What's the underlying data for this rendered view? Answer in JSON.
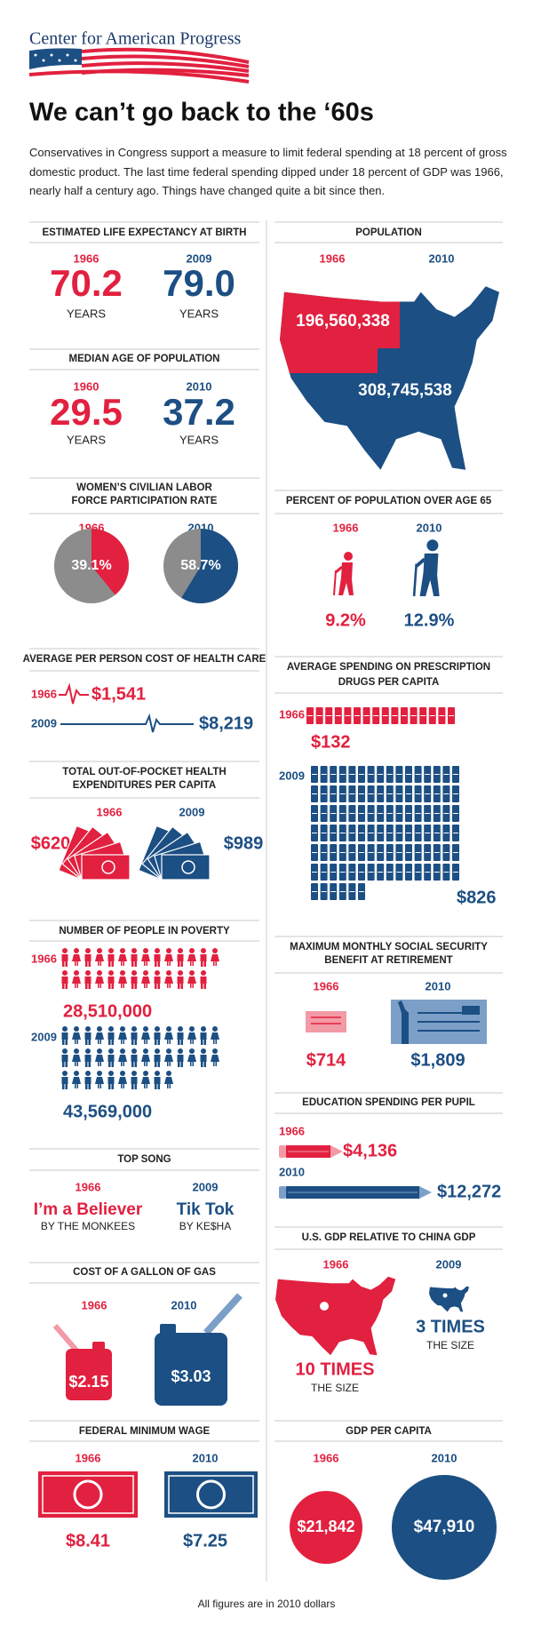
{
  "header": {
    "logo": "Center for American Progress",
    "title": "We can’t go back to the ‘60s",
    "intro": "Conservatives in Congress support a measure to limit federal spending at 18 percent of gross domestic product. The last time federal spending dipped under 18 percent of GDP was 1966, nearly half a century ago. Things have changed quite a bit since then."
  },
  "life_expectancy": {
    "title": "ESTIMATED LIFE EXPECTANCY AT BIRTH",
    "items": [
      {
        "year": "1966",
        "value": "70.2",
        "unit": "YEARS"
      },
      {
        "year": "2009",
        "value": "79.0",
        "unit": "YEARS"
      }
    ]
  },
  "median_age": {
    "title": "MEDIAN AGE OF POPULATION",
    "items": [
      {
        "year": "1960",
        "value": "29.5",
        "unit": "YEARS"
      },
      {
        "year": "2010",
        "value": "37.2",
        "unit": "YEARS"
      }
    ]
  },
  "labor_participation": {
    "title": [
      "WOMEN’S CIVILIAN LABOR",
      "FORCE PARTICIPATION RATE"
    ],
    "items": [
      {
        "year": "1966",
        "value": {
          "value": 39.1,
          "label": "39.1%"
        }
      },
      {
        "year": "2010",
        "value": {
          "value": 58.7,
          "label": "58.7%"
        }
      }
    ]
  },
  "health_care_cost": {
    "title": "AVERAGE PER PERSON COST OF HEALTH CARE",
    "items": [
      {
        "year": "1966",
        "value": "$1,541"
      },
      {
        "year": "2009",
        "value": "$8,219"
      }
    ]
  },
  "out_of_pocket": {
    "title": [
      "TOTAL OUT-OF-POCKET HEALTH",
      "EXPENDITURES PER CAPITA"
    ],
    "items": [
      {
        "year": "1966",
        "value": "$620"
      },
      {
        "year": "2009",
        "value": "$989"
      }
    ]
  },
  "poverty": {
    "title": "NUMBER OF PEOPLE IN POVERTY",
    "items": [
      {
        "year": "1966",
        "value": "28,510,000"
      },
      {
        "year": "2009",
        "value": "43,569,000"
      }
    ]
  },
  "top_song": {
    "title": "TOP SONG",
    "items": [
      {
        "year": "1966",
        "song": "I’m a Believer",
        "artist": "BY THE MONKEES"
      },
      {
        "year": "2009",
        "song": "Tik Tok",
        "artist": "BY KE$HA"
      }
    ]
  },
  "gas": {
    "title": "COST OF A GALLON OF GAS",
    "items": [
      {
        "year": "1966",
        "value": "$2.15"
      },
      {
        "year": "2010",
        "value": "$3.03"
      }
    ]
  },
  "minimum_wage": {
    "title": "FEDERAL MINIMUM WAGE",
    "items": [
      {
        "year": "1966",
        "value": "$8.41"
      },
      {
        "year": "2010",
        "value": "$7.25"
      }
    ]
  },
  "population": {
    "title": "POPULATION",
    "items": [
      {
        "year": "1966",
        "value": "196,560,338"
      },
      {
        "year": "2010",
        "value": "308,745,538"
      }
    ]
  },
  "over_65": {
    "title": "PERCENT OF POPULATION OVER AGE 65",
    "items": [
      {
        "year": "1966",
        "value": "9.2%"
      },
      {
        "year": "2010",
        "value": "12.9%"
      }
    ]
  },
  "prescription": {
    "title": [
      "AVERAGE SPENDING ON PRESCRIPTION",
      "DRUGS PER CAPITA"
    ],
    "items": [
      {
        "year": "1966",
        "value": "$132"
      },
      {
        "year": "2009",
        "value": "$826"
      }
    ]
  },
  "social_security": {
    "title": [
      "MAXIMUM MONTHLY SOCIAL SECURITY",
      "BENEFIT AT RETIREMENT"
    ],
    "items": [
      {
        "year": "1966",
        "value": "$714"
      },
      {
        "year": "2010",
        "value": "$1,809"
      }
    ]
  },
  "education": {
    "title": "EDUCATION SPENDING PER PUPIL",
    "items": [
      {
        "year": "1966",
        "value": "$4,136"
      },
      {
        "year": "2010",
        "value": "$12,272"
      }
    ]
  },
  "gdp_china": {
    "title": "U.S. GDP RELATIVE TO CHINA GDP",
    "items": [
      {
        "year": "1966",
        "value": "10 TIMES",
        "note": "THE SIZE"
      },
      {
        "year": "2009",
        "value": "3 TIMES",
        "note": "THE SIZE"
      }
    ]
  },
  "gdp_per_capita": {
    "title": "GDP PER CAPITA",
    "items": [
      {
        "year": "1966",
        "value": "$21,842"
      },
      {
        "year": "2010",
        "value": "$47,910"
      }
    ]
  },
  "footer": "All figures are in 2010 dollars"
}
